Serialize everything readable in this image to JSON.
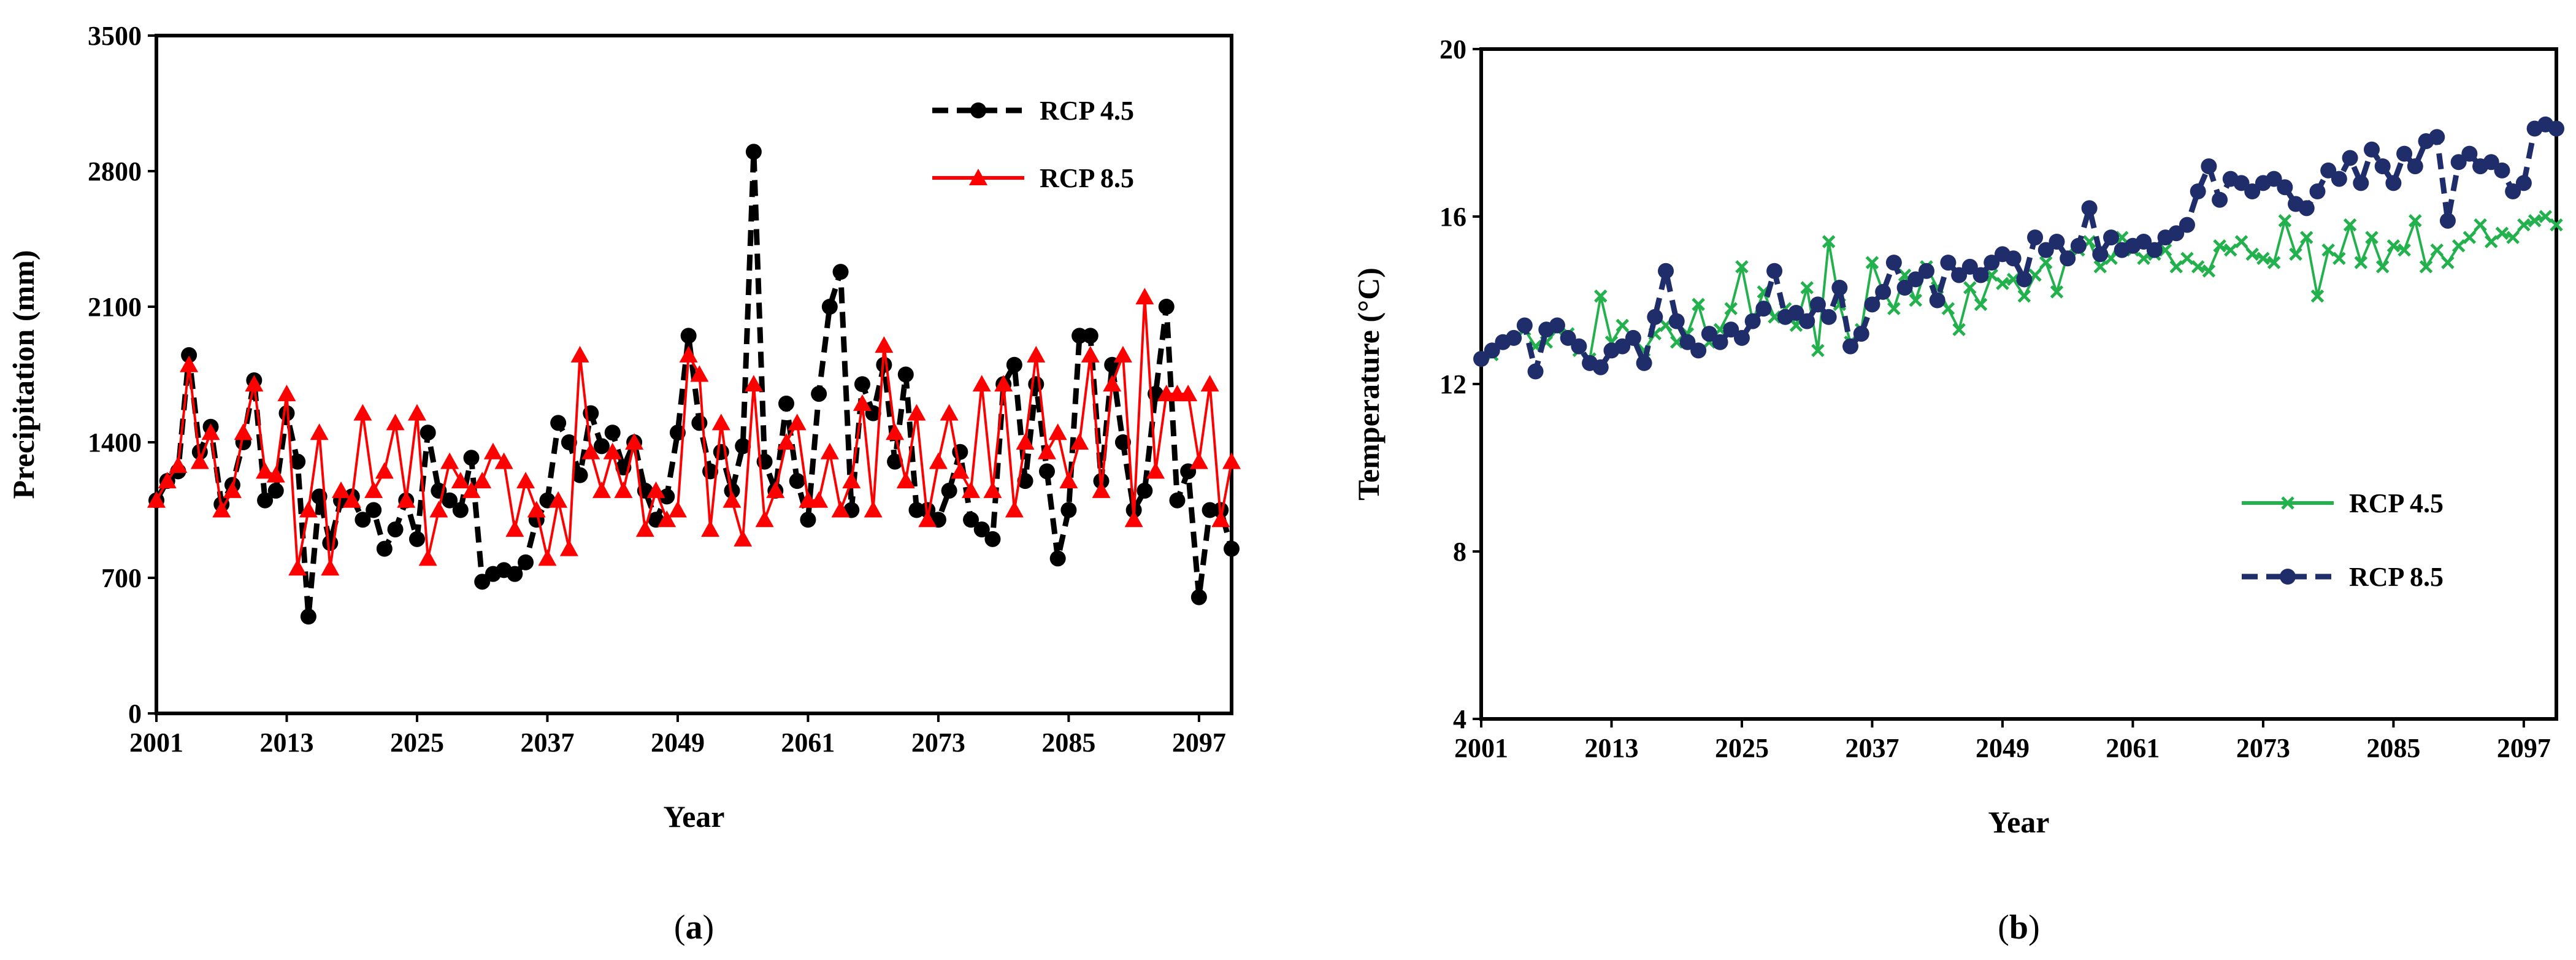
{
  "figure": {
    "panels": [
      {
        "label_open": "(",
        "label_letter": "a",
        "label_close": ")"
      },
      {
        "label_open": "(",
        "label_letter": "b",
        "label_close": ")"
      }
    ]
  },
  "chart_data": [
    {
      "type": "line",
      "xlabel": "Year",
      "ylabel": "Precipitation (mm)",
      "xlim": [
        2001,
        2100
      ],
      "ylim": [
        0,
        3500
      ],
      "x_ticks": [
        2001,
        2013,
        2025,
        2037,
        2049,
        2061,
        2073,
        2085,
        2097
      ],
      "y_ticks": [
        0,
        700,
        1400,
        2100,
        2800,
        3500
      ],
      "grid": false,
      "legend_position": "top-right",
      "x": [
        2001,
        2002,
        2003,
        2004,
        2005,
        2006,
        2007,
        2008,
        2009,
        2010,
        2011,
        2012,
        2013,
        2014,
        2015,
        2016,
        2017,
        2018,
        2019,
        2020,
        2021,
        2022,
        2023,
        2024,
        2025,
        2026,
        2027,
        2028,
        2029,
        2030,
        2031,
        2032,
        2033,
        2034,
        2035,
        2036,
        2037,
        2038,
        2039,
        2040,
        2041,
        2042,
        2043,
        2044,
        2045,
        2046,
        2047,
        2048,
        2049,
        2050,
        2051,
        2052,
        2053,
        2054,
        2055,
        2056,
        2057,
        2058,
        2059,
        2060,
        2061,
        2062,
        2063,
        2064,
        2065,
        2066,
        2067,
        2068,
        2069,
        2070,
        2071,
        2072,
        2073,
        2074,
        2075,
        2076,
        2077,
        2078,
        2079,
        2080,
        2081,
        2082,
        2083,
        2084,
        2085,
        2086,
        2087,
        2088,
        2089,
        2090,
        2091,
        2092,
        2093,
        2094,
        2095,
        2096,
        2097,
        2098,
        2099,
        2100
      ],
      "series": [
        {
          "name": "RCP 4.5",
          "color": "#000000",
          "style": "dashed-circle",
          "values": [
            1100,
            1200,
            1250,
            1850,
            1350,
            1480,
            1080,
            1180,
            1400,
            1720,
            1100,
            1150,
            1550,
            1300,
            500,
            1120,
            880,
            1100,
            1120,
            1000,
            1050,
            850,
            950,
            1100,
            900,
            1450,
            1150,
            1100,
            1050,
            1320,
            680,
            720,
            740,
            720,
            780,
            1000,
            1100,
            1500,
            1400,
            1230,
            1550,
            1380,
            1450,
            1270,
            1400,
            1150,
            1000,
            1120,
            1450,
            1950,
            1500,
            1250,
            1350,
            1150,
            1380,
            2900,
            1300,
            1150,
            1600,
            1200,
            1000,
            1650,
            2100,
            2280,
            1050,
            1700,
            1550,
            1800,
            1300,
            1750,
            1050,
            1050,
            1000,
            1150,
            1350,
            1000,
            950,
            900,
            1700,
            1800,
            1200,
            1700,
            1250,
            800,
            1050,
            1950,
            1950,
            1200,
            1800,
            1400,
            1050,
            1150,
            1650,
            2100,
            1100,
            1250,
            600,
            1050,
            1050,
            850
          ]
        },
        {
          "name": "RCP 8.5",
          "color": "#ff0000",
          "style": "solid-triangle",
          "values": [
            1100,
            1200,
            1280,
            1800,
            1300,
            1450,
            1050,
            1150,
            1450,
            1700,
            1250,
            1230,
            1650,
            750,
            1050,
            1450,
            750,
            1150,
            1100,
            1550,
            1150,
            1250,
            1500,
            1100,
            1550,
            800,
            1050,
            1300,
            1200,
            1150,
            1200,
            1350,
            1300,
            950,
            1200,
            1050,
            800,
            1100,
            850,
            1850,
            1350,
            1150,
            1350,
            1150,
            1400,
            950,
            1150,
            1000,
            1050,
            1850,
            1750,
            950,
            1500,
            1100,
            900,
            1700,
            1000,
            1150,
            1400,
            1500,
            1100,
            1100,
            1350,
            1050,
            1200,
            1600,
            1050,
            1900,
            1450,
            1200,
            1550,
            1000,
            1300,
            1550,
            1250,
            1150,
            1700,
            1150,
            1700,
            1050,
            1400,
            1850,
            1350,
            1450,
            1200,
            1400,
            1850,
            1150,
            1700,
            1850,
            1000,
            2150,
            1250,
            1650,
            1650,
            1650,
            1300,
            1700,
            1000,
            1300
          ]
        }
      ]
    },
    {
      "type": "line",
      "xlabel": "Year",
      "ylabel": "Temperature (°C)",
      "xlim": [
        2001,
        2100
      ],
      "ylim": [
        4,
        20
      ],
      "x_ticks": [
        2001,
        2013,
        2025,
        2037,
        2049,
        2061,
        2073,
        2085,
        2097
      ],
      "y_ticks": [
        4,
        8,
        12,
        16,
        20
      ],
      "grid": false,
      "legend_position": "center-right",
      "x": [
        2001,
        2002,
        2003,
        2004,
        2005,
        2006,
        2007,
        2008,
        2009,
        2010,
        2011,
        2012,
        2013,
        2014,
        2015,
        2016,
        2017,
        2018,
        2019,
        2020,
        2021,
        2022,
        2023,
        2024,
        2025,
        2026,
        2027,
        2028,
        2029,
        2030,
        2031,
        2032,
        2033,
        2034,
        2035,
        2036,
        2037,
        2038,
        2039,
        2040,
        2041,
        2042,
        2043,
        2044,
        2045,
        2046,
        2047,
        2048,
        2049,
        2050,
        2051,
        2052,
        2053,
        2054,
        2055,
        2056,
        2057,
        2058,
        2059,
        2060,
        2061,
        2062,
        2063,
        2064,
        2065,
        2066,
        2067,
        2068,
        2069,
        2070,
        2071,
        2072,
        2073,
        2074,
        2075,
        2076,
        2077,
        2078,
        2079,
        2080,
        2081,
        2082,
        2083,
        2084,
        2085,
        2086,
        2087,
        2088,
        2089,
        2090,
        2091,
        2092,
        2093,
        2094,
        2095,
        2096,
        2097,
        2098,
        2099,
        2100
      ],
      "series": [
        {
          "name": "RCP 4.5",
          "color": "#22b14c",
          "style": "solid-x",
          "values": [
            12.6,
            12.7,
            13.0,
            13.1,
            13.3,
            12.9,
            13.0,
            13.3,
            13.2,
            12.8,
            12.6,
            14.1,
            13.0,
            13.4,
            13.1,
            12.8,
            13.2,
            13.4,
            13.0,
            13.2,
            13.9,
            13.0,
            13.3,
            13.8,
            14.8,
            13.5,
            14.2,
            13.6,
            13.8,
            13.4,
            14.3,
            12.8,
            15.4,
            13.9,
            13.0,
            13.3,
            14.9,
            14.2,
            13.8,
            14.6,
            14.0,
            14.8,
            14.3,
            13.8,
            13.3,
            14.3,
            13.9,
            14.6,
            14.4,
            14.5,
            14.1,
            14.6,
            14.9,
            14.2,
            15.1,
            15.2,
            15.4,
            14.8,
            15.0,
            15.5,
            15.2,
            15.0,
            15.1,
            15.2,
            14.8,
            15.0,
            14.8,
            14.7,
            15.3,
            15.2,
            15.4,
            15.1,
            15.0,
            14.9,
            15.9,
            15.1,
            15.5,
            14.1,
            15.2,
            15.0,
            15.8,
            14.9,
            15.5,
            14.8,
            15.3,
            15.2,
            15.9,
            14.8,
            15.2,
            14.9,
            15.3,
            15.5,
            15.8,
            15.4,
            15.6,
            15.5,
            15.8,
            15.9,
            16.0,
            15.8
          ]
        },
        {
          "name": "RCP 8.5",
          "color": "#1f2d6b",
          "style": "dashed-circle",
          "values": [
            12.6,
            12.8,
            13.0,
            13.1,
            13.4,
            12.3,
            13.3,
            13.4,
            13.1,
            12.9,
            12.5,
            12.4,
            12.8,
            12.9,
            13.1,
            12.5,
            13.6,
            14.7,
            13.5,
            13.0,
            12.8,
            13.2,
            13.0,
            13.3,
            13.1,
            13.5,
            13.8,
            14.7,
            13.6,
            13.7,
            13.5,
            13.9,
            13.6,
            14.3,
            12.9,
            13.2,
            13.9,
            14.2,
            14.9,
            14.3,
            14.5,
            14.7,
            14.0,
            14.9,
            14.6,
            14.8,
            14.6,
            14.9,
            15.1,
            15.0,
            14.5,
            15.5,
            15.2,
            15.4,
            15.0,
            15.3,
            16.2,
            15.1,
            15.5,
            15.2,
            15.3,
            15.4,
            15.2,
            15.5,
            15.6,
            15.8,
            16.6,
            17.2,
            16.4,
            16.9,
            16.8,
            16.6,
            16.8,
            16.9,
            16.7,
            16.3,
            16.2,
            16.6,
            17.1,
            16.9,
            17.4,
            16.8,
            17.6,
            17.2,
            16.8,
            17.5,
            17.2,
            17.8,
            17.9,
            15.9,
            17.3,
            17.5,
            17.2,
            17.3,
            17.1,
            16.6,
            16.8,
            18.1,
            18.2,
            18.1
          ]
        }
      ]
    }
  ]
}
